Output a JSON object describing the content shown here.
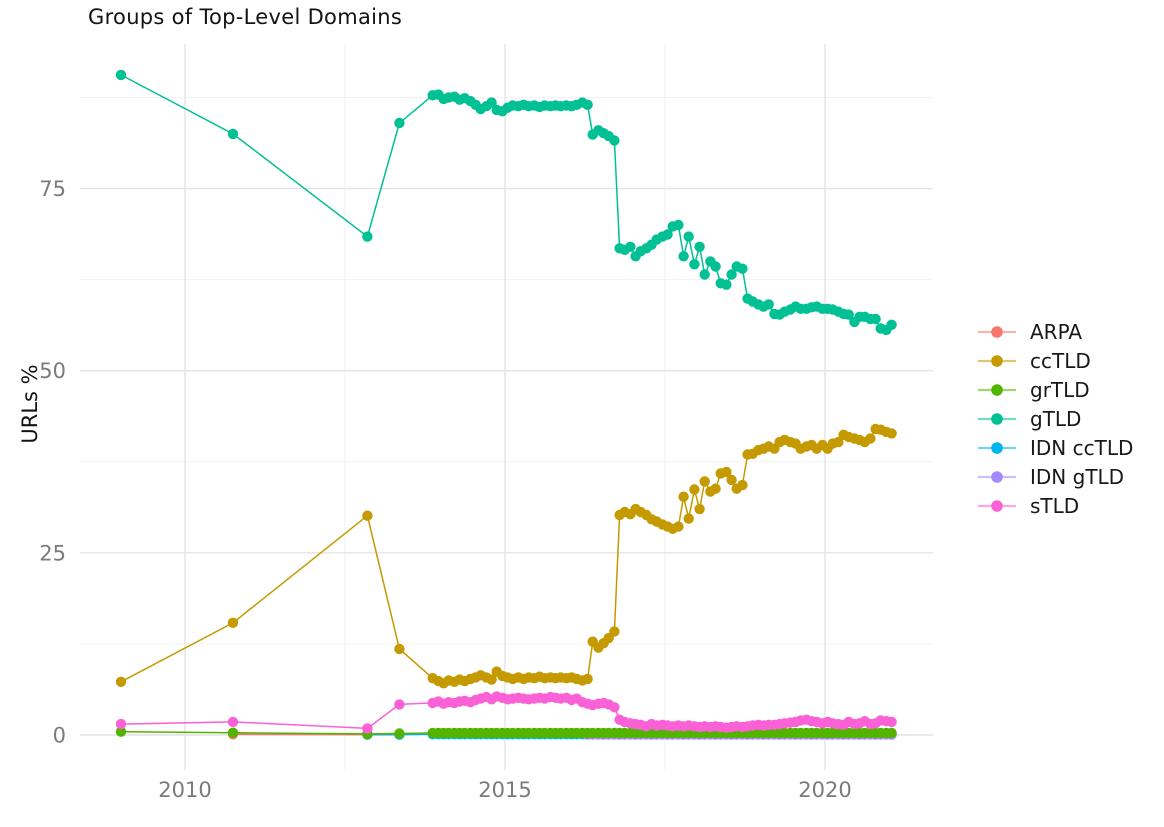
{
  "chart_data": {
    "type": "line",
    "title": "Groups of Top-Level Domains",
    "xlabel": "",
    "ylabel": "URLs %",
    "grid": true,
    "legend_position": "right",
    "point_style": "filled-circle",
    "xlim": [
      2008.35,
      2021.7
    ],
    "ylim": [
      -4.8,
      95.5
    ],
    "x_ticks": [
      2010,
      2015,
      2020
    ],
    "x_minor_gridlines": [
      2012.5,
      2017.5
    ],
    "y_ticks": [
      0,
      25,
      50,
      75
    ],
    "y_minor_gridlines": [
      12.5,
      37.5,
      62.5,
      87.5
    ],
    "dense_x": [
      2013.87,
      2013.96,
      2014.04,
      2014.12,
      2014.21,
      2014.29,
      2014.37,
      2014.46,
      2014.54,
      2014.62,
      2014.71,
      2014.79,
      2014.87,
      2014.96,
      2015.04,
      2015.12,
      2015.21,
      2015.29,
      2015.37,
      2015.46,
      2015.54,
      2015.62,
      2015.71,
      2015.79,
      2015.87,
      2015.96,
      2016.04,
      2016.12,
      2016.21,
      2016.29,
      2016.37,
      2016.46,
      2016.54,
      2016.62,
      2016.71,
      2016.79,
      2016.87,
      2016.96,
      2017.04,
      2017.12,
      2017.21,
      2017.29,
      2017.37,
      2017.46,
      2017.54,
      2017.62,
      2017.71,
      2017.79,
      2017.87,
      2017.96,
      2018.04,
      2018.12,
      2018.21,
      2018.29,
      2018.37,
      2018.46,
      2018.54,
      2018.62,
      2018.71,
      2018.79,
      2018.87,
      2018.96,
      2019.04,
      2019.12,
      2019.21,
      2019.29,
      2019.37,
      2019.46,
      2019.54,
      2019.62,
      2019.71,
      2019.79,
      2019.87,
      2019.96,
      2020.04,
      2020.12,
      2020.21,
      2020.29,
      2020.37,
      2020.46,
      2020.54,
      2020.62,
      2020.71,
      2020.79,
      2020.87,
      2020.96,
      2021.04
    ],
    "series": [
      {
        "name": "ARPA",
        "color": "#F8766D",
        "points": [
          [
            2010.75,
            0.1
          ],
          [
            2012.85,
            0.05
          ],
          [
            2013.35,
            0.04
          ]
        ]
      },
      {
        "name": "ccTLD",
        "color": "#C49A00",
        "points": [
          [
            2009.0,
            7.3
          ],
          [
            2010.75,
            15.4
          ],
          [
            2012.85,
            30.1
          ],
          [
            2013.35,
            11.8
          ]
        ],
        "dense": [
          7.8,
          7.4,
          7.1,
          7.5,
          7.3,
          7.6,
          7.4,
          7.7,
          7.9,
          8.2,
          7.9,
          7.6,
          8.7,
          8.1,
          7.9,
          7.7,
          7.9,
          7.7,
          7.9,
          7.8,
          8.0,
          7.8,
          7.9,
          7.8,
          7.9,
          7.8,
          7.9,
          7.7,
          7.5,
          7.7,
          12.8,
          12.0,
          12.6,
          13.3,
          14.2,
          30.2,
          30.6,
          30.3,
          31.0,
          30.6,
          30.2,
          29.6,
          29.3,
          28.9,
          28.6,
          28.3,
          28.6,
          32.7,
          29.7,
          33.7,
          31.0,
          34.8,
          33.4,
          33.8,
          35.9,
          36.1,
          35.0,
          33.8,
          34.3,
          38.5,
          38.6,
          39.1,
          39.3,
          39.6,
          39.3,
          40.2,
          40.5,
          40.2,
          40.0,
          39.3,
          39.6,
          39.8,
          39.3,
          39.8,
          39.3,
          40.0,
          40.2,
          41.2,
          40.9,
          40.7,
          40.5,
          40.2,
          40.7,
          42.0,
          41.9,
          41.6,
          41.4
        ]
      },
      {
        "name": "grTLD",
        "color": "#53B400",
        "points": [
          [
            2009.0,
            0.45
          ],
          [
            2010.75,
            0.3
          ],
          [
            2012.85,
            0.15
          ],
          [
            2013.35,
            0.2
          ]
        ],
        "dense_const": 0.27
      },
      {
        "name": "gTLD",
        "color": "#00C094",
        "points": [
          [
            2009.0,
            90.6
          ],
          [
            2010.75,
            82.5
          ],
          [
            2012.85,
            68.4
          ],
          [
            2013.35,
            84.0
          ]
        ],
        "dense": [
          87.8,
          87.9,
          87.3,
          87.5,
          87.6,
          87.2,
          87.4,
          87.0,
          86.5,
          85.9,
          86.3,
          86.8,
          85.8,
          85.6,
          86.1,
          86.4,
          86.3,
          86.5,
          86.3,
          86.4,
          86.2,
          86.4,
          86.3,
          86.4,
          86.3,
          86.4,
          86.3,
          86.5,
          86.8,
          86.5,
          82.4,
          83.0,
          82.6,
          82.2,
          81.6,
          66.8,
          66.6,
          67.0,
          65.7,
          66.4,
          66.8,
          67.3,
          68.0,
          68.4,
          68.7,
          69.8,
          70.0,
          65.7,
          68.4,
          64.6,
          67.0,
          63.2,
          65.0,
          64.3,
          62.0,
          61.8,
          63.2,
          64.3,
          64.0,
          59.9,
          59.5,
          59.1,
          58.8,
          59.1,
          57.8,
          57.7,
          58.1,
          58.4,
          58.8,
          58.5,
          58.5,
          58.7,
          58.8,
          58.5,
          58.5,
          58.4,
          58.1,
          57.8,
          57.7,
          56.7,
          57.4,
          57.4,
          57.1,
          57.1,
          55.8,
          55.6,
          56.3
        ]
      },
      {
        "name": "IDN ccTLD",
        "color": "#00B6EB",
        "points": [
          [
            2012.85,
            0.05
          ],
          [
            2013.35,
            0.05
          ]
        ],
        "dense_const": 0.1
      },
      {
        "name": "IDN gTLD",
        "color": "#A58AFF",
        "points": [],
        "dense_const": 0.05,
        "dense_from": 29
      },
      {
        "name": "sTLD",
        "color": "#FB61D7",
        "points": [
          [
            2009.0,
            1.5
          ],
          [
            2010.75,
            1.8
          ],
          [
            2012.85,
            0.9
          ],
          [
            2013.35,
            4.2
          ]
        ],
        "dense": [
          4.4,
          4.6,
          4.3,
          4.5,
          4.4,
          4.6,
          4.7,
          4.5,
          4.8,
          5.0,
          5.2,
          4.9,
          5.3,
          5.1,
          4.9,
          5.0,
          5.1,
          5.0,
          4.9,
          5.0,
          5.1,
          5.0,
          5.2,
          5.1,
          5.0,
          5.1,
          4.8,
          5.0,
          4.5,
          4.3,
          4.1,
          4.3,
          4.4,
          4.2,
          3.8,
          2.1,
          1.8,
          1.6,
          1.5,
          1.4,
          1.2,
          1.5,
          1.3,
          1.4,
          1.3,
          1.2,
          1.3,
          1.2,
          1.3,
          1.2,
          1.1,
          1.2,
          1.1,
          1.2,
          1.1,
          1.0,
          1.1,
          1.2,
          1.1,
          1.2,
          1.3,
          1.4,
          1.3,
          1.4,
          1.4,
          1.5,
          1.6,
          1.7,
          1.8,
          2.0,
          2.1,
          1.9,
          1.8,
          1.6,
          1.8,
          1.6,
          1.5,
          1.4,
          1.8,
          1.5,
          1.6,
          1.9,
          1.5,
          1.6,
          2.0,
          1.9,
          1.8
        ]
      }
    ],
    "draw_order": [
      "ARPA",
      "IDN ccTLD",
      "IDN gTLD",
      "ccTLD",
      "gTLD",
      "grTLD",
      "sTLD"
    ]
  }
}
